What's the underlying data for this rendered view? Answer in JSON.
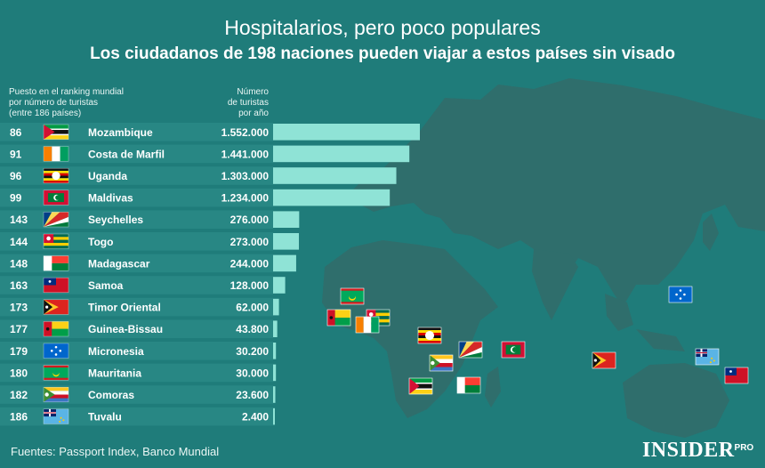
{
  "title": "Hospitalarios, pero poco populares",
  "subtitle": "Los ciudadanos de 198 naciones pueden viajar a estos países sin visado",
  "header_rank": [
    "Puesto en el ranking mundial",
    "por número de turistas",
    "(entre 186 países)"
  ],
  "header_value": [
    "Número",
    "de turistas",
    "por año"
  ],
  "source": "Fuentes: Passport Index, Banco Mundial",
  "logo": {
    "main": "INSIDER",
    "tag": "PRO"
  },
  "colors": {
    "background": "#1f7c7a",
    "bar": "#8fe3d6",
    "row": "#2a8a86",
    "map": "#2f6e6c"
  },
  "chart_data": {
    "type": "bar",
    "orientation": "horizontal",
    "xlim": [
      0,
      1552000
    ],
    "rows": [
      {
        "rank": "86",
        "country": "Mozambique",
        "value": 1552000,
        "label": "1.552.000",
        "flag": "flag-mozambique"
      },
      {
        "rank": "91",
        "country": "Costa de Marfil",
        "value": 1441000,
        "label": "1.441.000",
        "flag": "flag-cote-divoire"
      },
      {
        "rank": "96",
        "country": "Uganda",
        "value": 1303000,
        "label": "1.303.000",
        "flag": "flag-uganda"
      },
      {
        "rank": "99",
        "country": "Maldivas",
        "value": 1234000,
        "label": "1.234.000",
        "flag": "flag-maldives"
      },
      {
        "rank": "143",
        "country": "Seychelles",
        "value": 276000,
        "label": "276.000",
        "flag": "flag-seychelles"
      },
      {
        "rank": "144",
        "country": "Togo",
        "value": 273000,
        "label": "273.000",
        "flag": "flag-togo"
      },
      {
        "rank": "148",
        "country": "Madagascar",
        "value": 244000,
        "label": "244.000",
        "flag": "flag-madagascar"
      },
      {
        "rank": "163",
        "country": "Samoa",
        "value": 128000,
        "label": "128.000",
        "flag": "flag-samoa"
      },
      {
        "rank": "173",
        "country": "Timor Oriental",
        "value": 62000,
        "label": "62.000",
        "flag": "flag-timor-leste"
      },
      {
        "rank": "177",
        "country": "Guinea-Bissau",
        "value": 43800,
        "label": "43.800",
        "flag": "flag-guinea-bissau"
      },
      {
        "rank": "179",
        "country": "Micronesia",
        "value": 30200,
        "label": "30.200",
        "flag": "flag-micronesia"
      },
      {
        "rank": "180",
        "country": "Mauritania",
        "value": 30000,
        "label": "30.000",
        "flag": "flag-mauritania"
      },
      {
        "rank": "182",
        "country": "Comoras",
        "value": 23600,
        "label": "23.600",
        "flag": "flag-comoros"
      },
      {
        "rank": "186",
        "country": "Tuvalu",
        "value": 2400,
        "label": "2.400",
        "flag": "flag-tuvalu"
      }
    ]
  }
}
